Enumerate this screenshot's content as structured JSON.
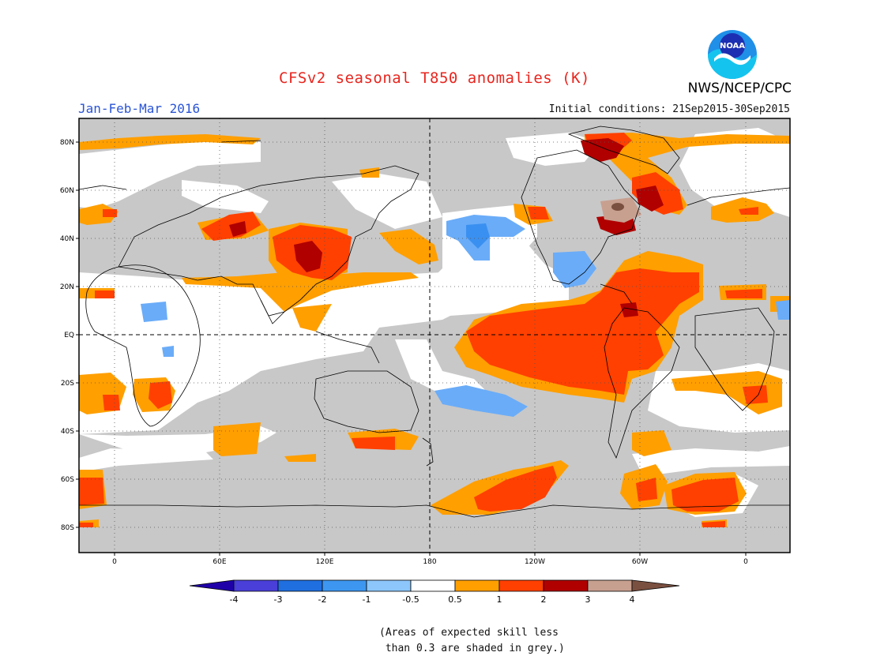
{
  "header": {
    "title": "CFSv2 seasonal T850 anomalies (K)",
    "season": "Jan-Feb-Mar 2016",
    "initial_conditions": "Initial conditions: 21Sep2015-30Sep2015",
    "agency": "NWS/NCEP/CPC",
    "logo_text": "NOAA"
  },
  "map": {
    "lat_labels": [
      "80N",
      "60N",
      "40N",
      "20N",
      "EQ",
      "20S",
      "40S",
      "60S",
      "80S"
    ],
    "lon_labels": [
      "0",
      "60E",
      "120E",
      "180",
      "120W",
      "60W",
      "0"
    ],
    "colors": {
      "grey_skill": "#c8c8c8",
      "white": "#ffffff",
      "orange": "#ff9f00",
      "red_orange": "#ff4000",
      "dark_red": "#b00000",
      "brown_light": "#c8a090",
      "brown": "#7a5040",
      "light_blue": "#6aacf8",
      "blue": "#3a90f0"
    }
  },
  "colorbar": {
    "labels": [
      "-4",
      "-3",
      "-2",
      "-1",
      "-0.5",
      "0.5",
      "1",
      "2",
      "3",
      "4"
    ],
    "colors": [
      "#1f00a8",
      "#4a3fd8",
      "#1f6fe0",
      "#3d97f0",
      "#8cc6fa",
      "#ffffff",
      "#ff9f00",
      "#ff4000",
      "#b00000",
      "#c8a090",
      "#7a5040"
    ]
  },
  "note": {
    "line1": "(Areas of expected skill less",
    "line2": " than 0.3 are shaded in grey.)"
  }
}
